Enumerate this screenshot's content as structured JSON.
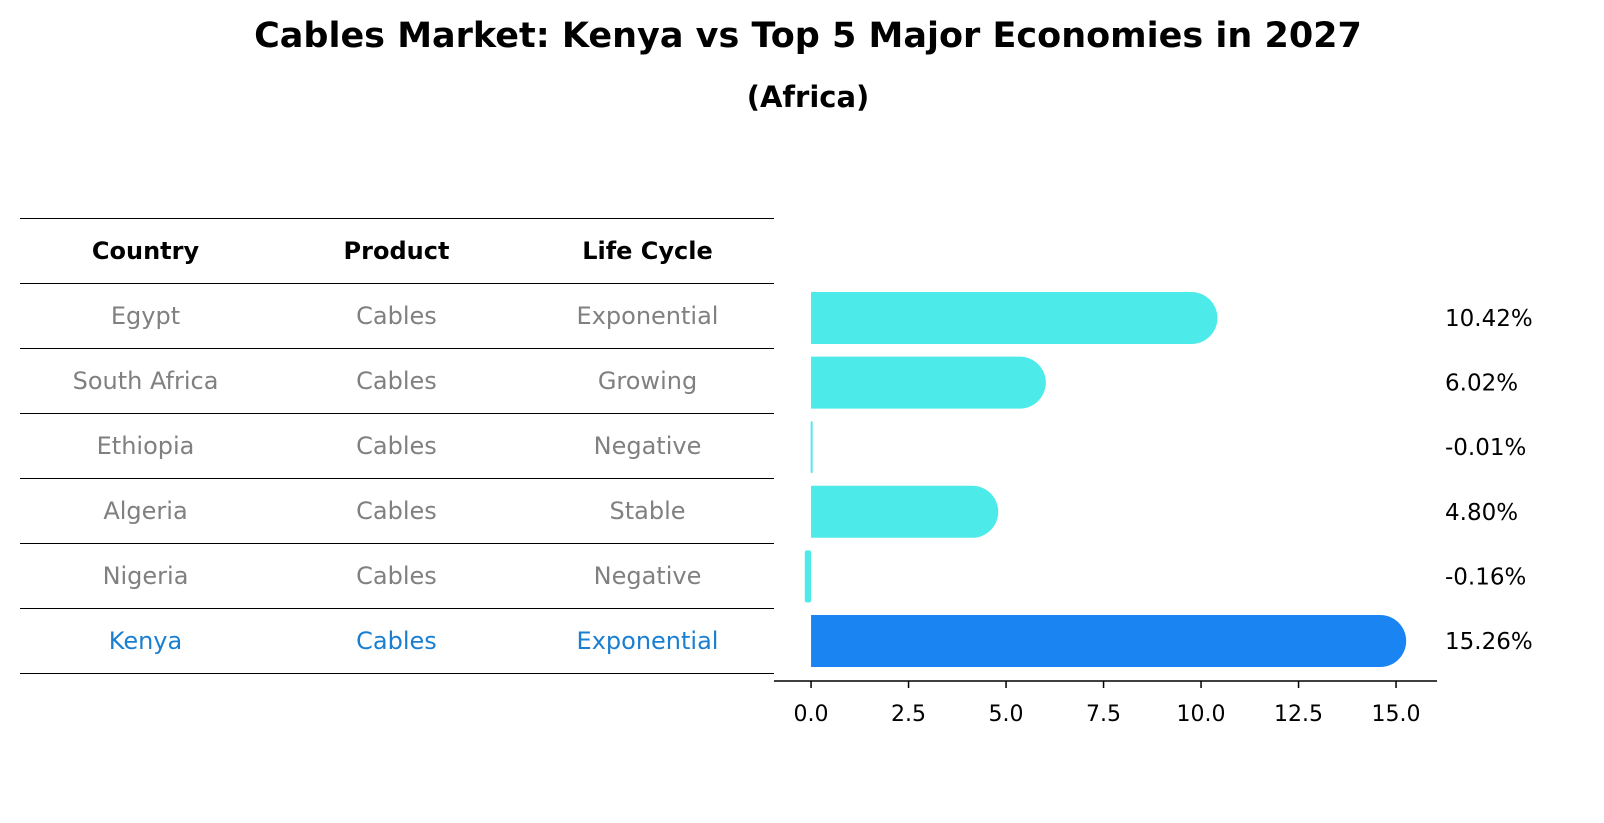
{
  "title": "Cables Market: Kenya vs Top 5 Major Economies in 2027",
  "subtitle": "(Africa)",
  "table": {
    "headers": [
      "Country",
      "Product",
      "Life Cycle"
    ],
    "rows": [
      [
        "Egypt",
        "Cables",
        "Exponential"
      ],
      [
        "South Africa",
        "Cables",
        "Growing"
      ],
      [
        "Ethiopia",
        "Cables",
        "Negative"
      ],
      [
        "Algeria",
        "Cables",
        "Stable"
      ],
      [
        "Nigeria",
        "Cables",
        "Negative"
      ],
      [
        "Kenya",
        "Cables",
        "Exponential"
      ]
    ],
    "highlight_row": 5
  },
  "colors": {
    "bar": "#4deaea",
    "highlight_bar": "#1a84f3",
    "highlight_text": "#1a7fd1",
    "muted_text": "#808080"
  },
  "chart_data": {
    "type": "bar",
    "orientation": "horizontal",
    "categories": [
      "Egypt",
      "South Africa",
      "Ethiopia",
      "Algeria",
      "Nigeria",
      "Kenya"
    ],
    "values": [
      10.42,
      6.02,
      -0.01,
      4.8,
      -0.16,
      15.26
    ],
    "value_labels": [
      "10.42%",
      "6.02%",
      "-0.01%",
      "4.80%",
      "-0.16%",
      "15.26%"
    ],
    "highlight": "Kenya",
    "xlim": [
      -0.95,
      16.05
    ],
    "xticks": [
      0.0,
      2.5,
      5.0,
      7.5,
      10.0,
      12.5,
      15.0
    ],
    "xtick_labels": [
      "0.0",
      "2.5",
      "5.0",
      "7.5",
      "10.0",
      "12.5",
      "15.0"
    ],
    "grid": false,
    "legend": "none"
  }
}
